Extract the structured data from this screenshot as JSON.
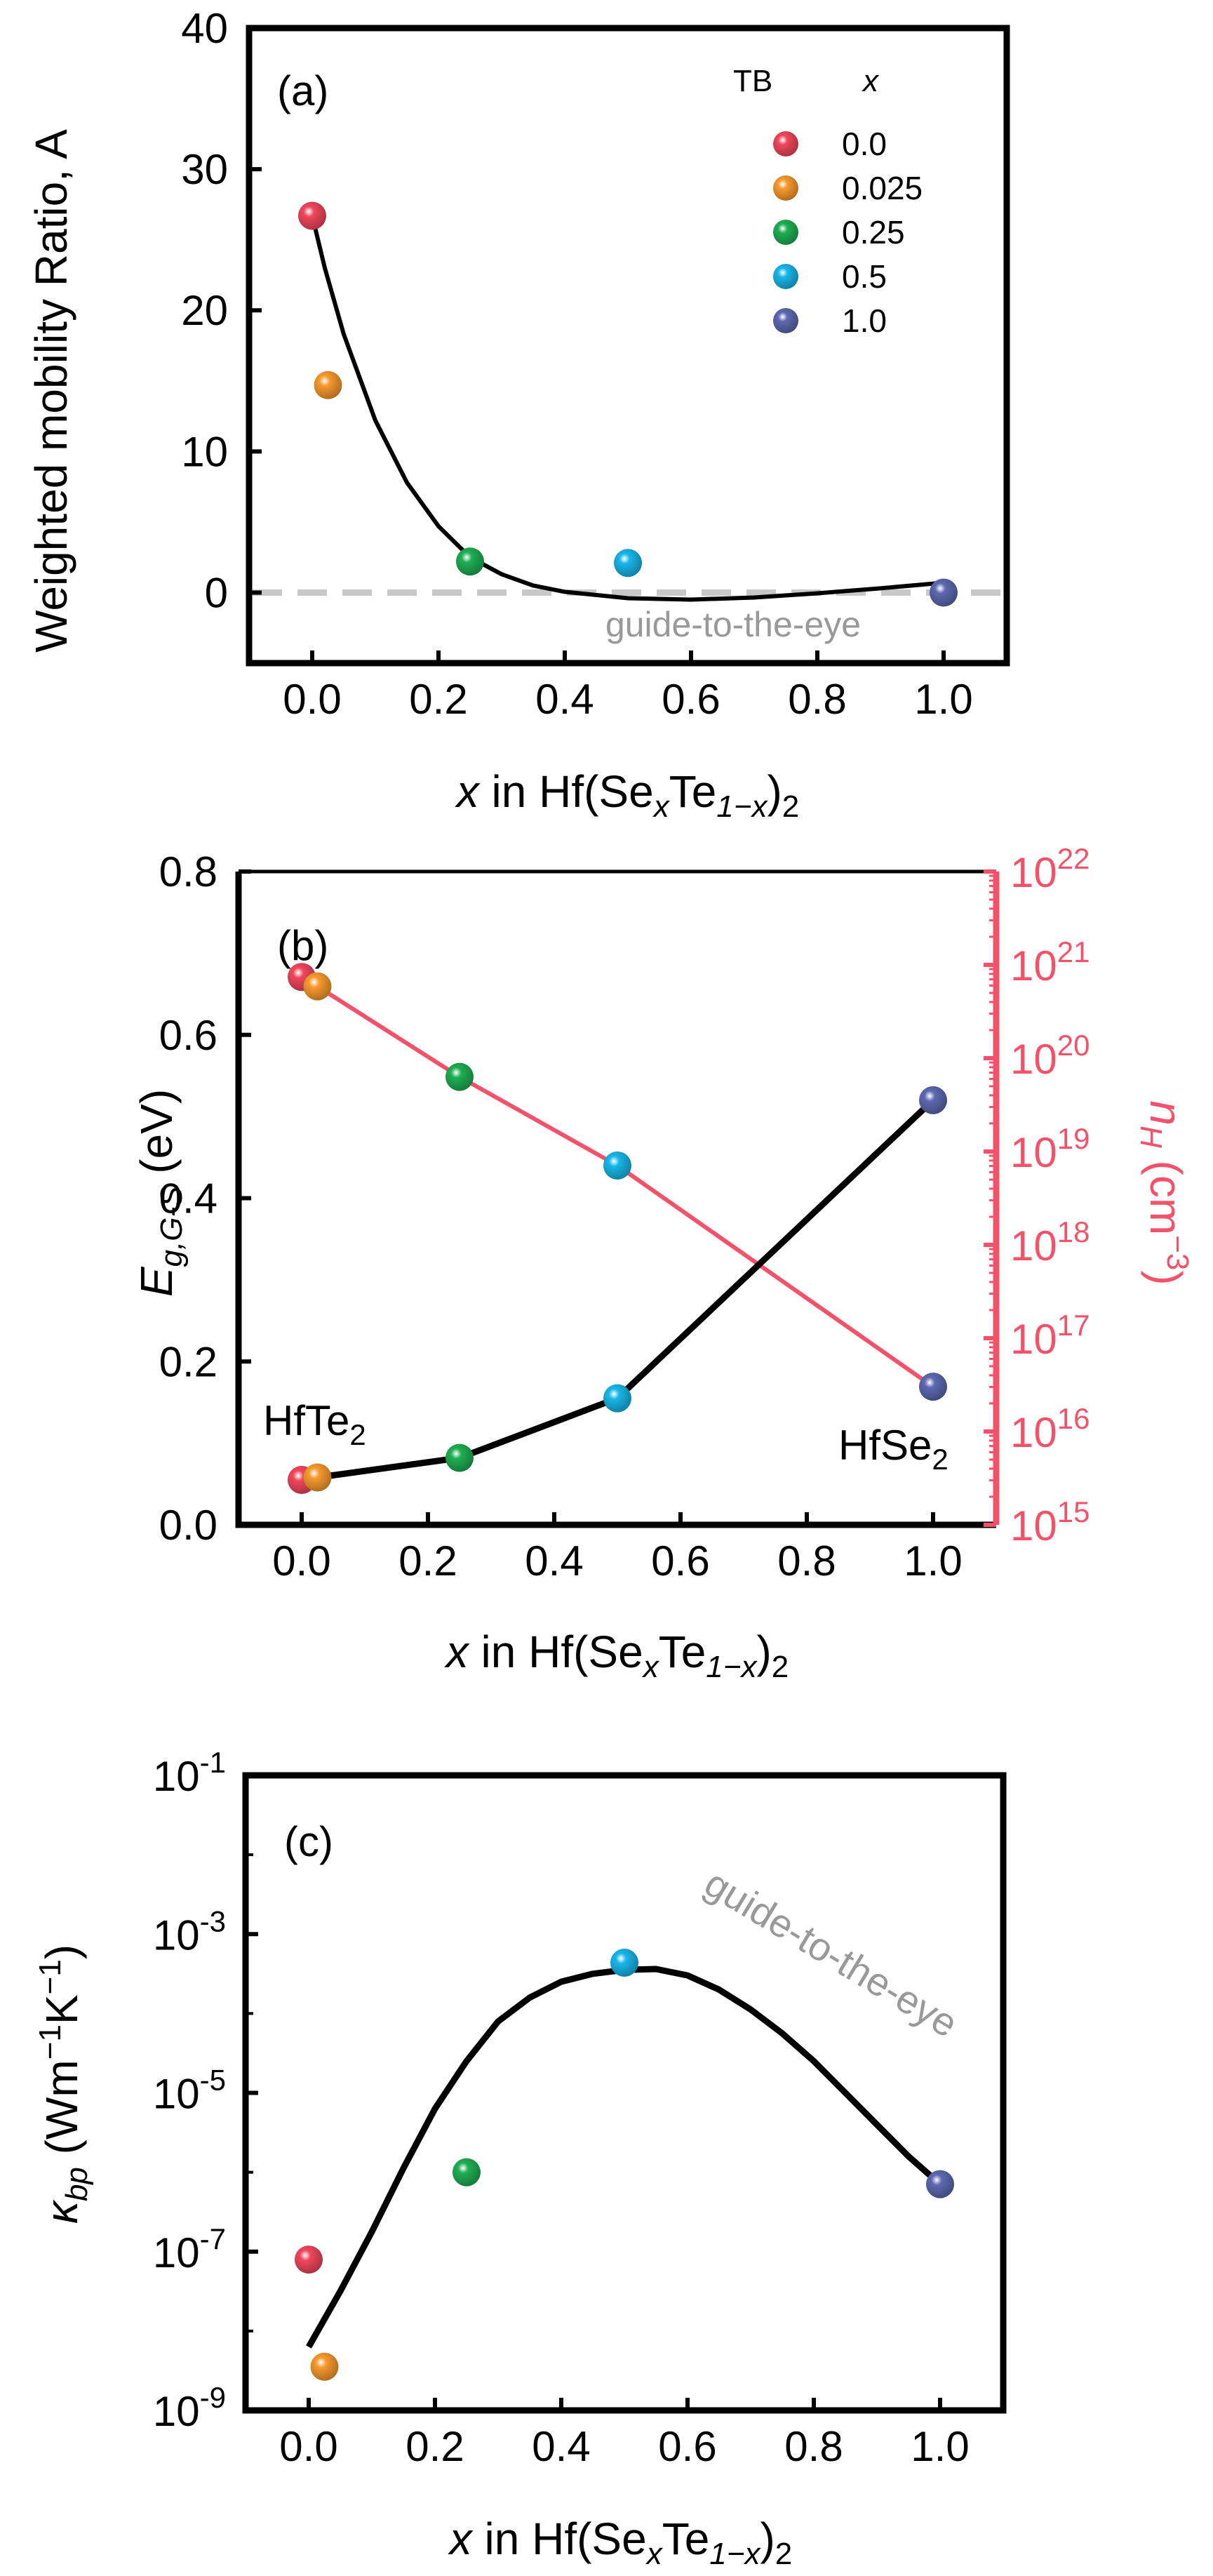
{
  "colors": {
    "tb_0_0": "#f0475c",
    "tb_0_025": "#f79a2e",
    "tb_0_25": "#1fae53",
    "tb_0_5": "#18b6e8",
    "tb_1_0": "#5d69b0",
    "ne_axis": "#f2536a",
    "guide_text": "#999999",
    "zero_line": "#c8c8c8",
    "black": "#000000"
  },
  "chart_data": [
    {
      "id": "a",
      "type": "scatter",
      "panel_label": "(a)",
      "ylabel": "Weighted mobility Ratio, A",
      "xlabel": {
        "prefix": "x",
        "mid": " in Hf(Se",
        "sub1": "x",
        "mid2": "Te",
        "sub2": "1−x",
        "end": ")",
        "sub3": "2"
      },
      "xlim": [
        -0.1,
        1.1
      ],
      "ylim": [
        -5,
        40
      ],
      "xticks": [
        0.0,
        0.2,
        0.4,
        0.6,
        0.8,
        1.0
      ],
      "xtick_labels": [
        "0.0",
        "0.2",
        "0.4",
        "0.6",
        "0.8",
        "1.0"
      ],
      "yticks": [
        0,
        10,
        20,
        30,
        40
      ],
      "ytick_labels": [
        "0",
        "10",
        "20",
        "30",
        "40"
      ],
      "points": [
        {
          "x": 0.0,
          "y": 26.7,
          "color_key": "tb_0_0"
        },
        {
          "x": 0.025,
          "y": 14.7,
          "color_key": "tb_0_025"
        },
        {
          "x": 0.25,
          "y": 2.2,
          "color_key": "tb_0_25"
        },
        {
          "x": 0.5,
          "y": 2.1,
          "color_key": "tb_0_5"
        },
        {
          "x": 1.0,
          "y": 0.0,
          "color_key": "tb_1_0"
        }
      ],
      "guide_curve": [
        [
          0.0,
          26.7
        ],
        [
          0.02,
          23.0
        ],
        [
          0.05,
          18.3
        ],
        [
          0.1,
          12.2
        ],
        [
          0.15,
          7.8
        ],
        [
          0.2,
          4.7
        ],
        [
          0.25,
          2.5
        ],
        [
          0.3,
          1.3
        ],
        [
          0.35,
          0.5
        ],
        [
          0.4,
          0.05
        ],
        [
          0.5,
          -0.4
        ],
        [
          0.6,
          -0.5
        ],
        [
          0.7,
          -0.35
        ],
        [
          0.8,
          -0.05
        ],
        [
          0.9,
          0.3
        ],
        [
          1.0,
          0.7
        ]
      ],
      "zero_line_y": 0,
      "annotation": "guide-to-the-eye",
      "legend": {
        "title_tb": "TB",
        "title_x": "x",
        "entries": [
          {
            "label": "0.0",
            "color_key": "tb_0_0"
          },
          {
            "label": "0.025",
            "color_key": "tb_0_025"
          },
          {
            "label": "0.25",
            "color_key": "tb_0_25"
          },
          {
            "label": "0.5",
            "color_key": "tb_0_5"
          },
          {
            "label": "1.0",
            "color_key": "tb_1_0"
          }
        ]
      }
    },
    {
      "id": "b",
      "type": "line",
      "panel_label": "(b)",
      "ylabel": {
        "main": "E",
        "sub": "g,G-S",
        "unit": " (eV)"
      },
      "ylabel_right": {
        "main": "n",
        "sub": "H",
        "unit": " (cm",
        "sup": "−3",
        "end": ")"
      },
      "xlabel": {
        "prefix": "x",
        "mid": " in Hf(Se",
        "sub1": "x",
        "mid2": "Te",
        "sub2": "1−x",
        "end": ")",
        "sub3": "2"
      },
      "xlim": [
        -0.1,
        1.1
      ],
      "ylim": [
        0.0,
        0.8
      ],
      "ylim_right_log10": [
        15,
        22
      ],
      "xticks": [
        0.0,
        0.2,
        0.4,
        0.6,
        0.8,
        1.0
      ],
      "xtick_labels": [
        "0.0",
        "0.2",
        "0.4",
        "0.6",
        "0.8",
        "1.0"
      ],
      "yticks": [
        0.0,
        0.2,
        0.4,
        0.6,
        0.8
      ],
      "ytick_labels": [
        "0.0",
        "0.2",
        "0.4",
        "0.6",
        "0.8"
      ],
      "yticks_right_exp": [
        15,
        16,
        17,
        18,
        19,
        20,
        21,
        22
      ],
      "ytick_right_base": "10",
      "ytick_right_exps": [
        "15",
        "16",
        "17",
        "18",
        "19",
        "20",
        "21",
        "22"
      ],
      "series_gap": {
        "name": "E_g,G-S",
        "points": [
          {
            "x": 0.0,
            "y": 0.055,
            "color_key": "tb_0_0"
          },
          {
            "x": 0.025,
            "y": 0.058,
            "color_key": "tb_0_025"
          },
          {
            "x": 0.25,
            "y": 0.082,
            "color_key": "tb_0_25"
          },
          {
            "x": 0.5,
            "y": 0.155,
            "color_key": "tb_0_5"
          },
          {
            "x": 1.0,
            "y": 0.52,
            "color_key": "tb_1_0"
          }
        ]
      },
      "series_nh": {
        "name": "n_H",
        "points_log10": [
          {
            "x": 0.0,
            "y": 20.87,
            "color_key": "tb_0_0"
          },
          {
            "x": 0.025,
            "y": 20.77,
            "color_key": "tb_0_025"
          },
          {
            "x": 0.25,
            "y": 19.8,
            "color_key": "tb_0_25"
          },
          {
            "x": 0.5,
            "y": 18.85,
            "color_key": "tb_0_5"
          },
          {
            "x": 1.0,
            "y": 16.48,
            "color_key": "tb_1_0"
          }
        ]
      },
      "label_left": {
        "main": "HfTe",
        "sub": "2"
      },
      "label_right": {
        "main": "HfSe",
        "sub": "2"
      }
    },
    {
      "id": "c",
      "type": "scatter",
      "panel_label": "(c)",
      "ylabel": {
        "main": "κ",
        "sub": "bp",
        "unit": " (Wm",
        "sup1": "−1",
        "mid": "K",
        "sup2": "−1",
        "end": ")"
      },
      "xlabel": {
        "prefix": "x",
        "mid": " in Hf(Se",
        "sub1": "x",
        "mid2": "Te",
        "sub2": "1−x",
        "end": ")",
        "sub3": "2"
      },
      "xlim": [
        -0.1,
        1.1
      ],
      "ylim_log10": [
        -9,
        -1
      ],
      "xticks": [
        0.0,
        0.2,
        0.4,
        0.6,
        0.8,
        1.0
      ],
      "xtick_labels": [
        "0.0",
        "0.2",
        "0.4",
        "0.6",
        "0.8",
        "1.0"
      ],
      "yticks_exp": [
        -9,
        -7,
        -5,
        -3,
        -1
      ],
      "ytick_labels": [
        "10-9",
        "10-7",
        "10-5",
        "10-3",
        "10-1"
      ],
      "ytick_base": "10",
      "ytick_exps": [
        "-9",
        "-7",
        "-5",
        "-3",
        "-1"
      ],
      "points_log10": [
        {
          "x": 0.0,
          "y": -7.1,
          "color_key": "tb_0_0"
        },
        {
          "x": 0.025,
          "y": -8.45,
          "color_key": "tb_0_025"
        },
        {
          "x": 0.25,
          "y": -6.0,
          "color_key": "tb_0_25"
        },
        {
          "x": 0.5,
          "y": -3.36,
          "color_key": "tb_0_5"
        },
        {
          "x": 1.0,
          "y": -6.15,
          "color_key": "tb_1_0"
        }
      ],
      "guide_curve_log10": [
        [
          0.0,
          -8.2
        ],
        [
          0.05,
          -7.5
        ],
        [
          0.1,
          -6.75
        ],
        [
          0.15,
          -5.95
        ],
        [
          0.2,
          -5.2
        ],
        [
          0.25,
          -4.6
        ],
        [
          0.3,
          -4.1
        ],
        [
          0.35,
          -3.8
        ],
        [
          0.4,
          -3.6
        ],
        [
          0.45,
          -3.5
        ],
        [
          0.5,
          -3.45
        ],
        [
          0.55,
          -3.44
        ],
        [
          0.6,
          -3.52
        ],
        [
          0.65,
          -3.7
        ],
        [
          0.7,
          -3.95
        ],
        [
          0.75,
          -4.25
        ],
        [
          0.8,
          -4.6
        ],
        [
          0.85,
          -5.0
        ],
        [
          0.9,
          -5.4
        ],
        [
          0.95,
          -5.8
        ],
        [
          1.0,
          -6.15
        ]
      ],
      "annotation": "guide-to-the-eye"
    }
  ]
}
